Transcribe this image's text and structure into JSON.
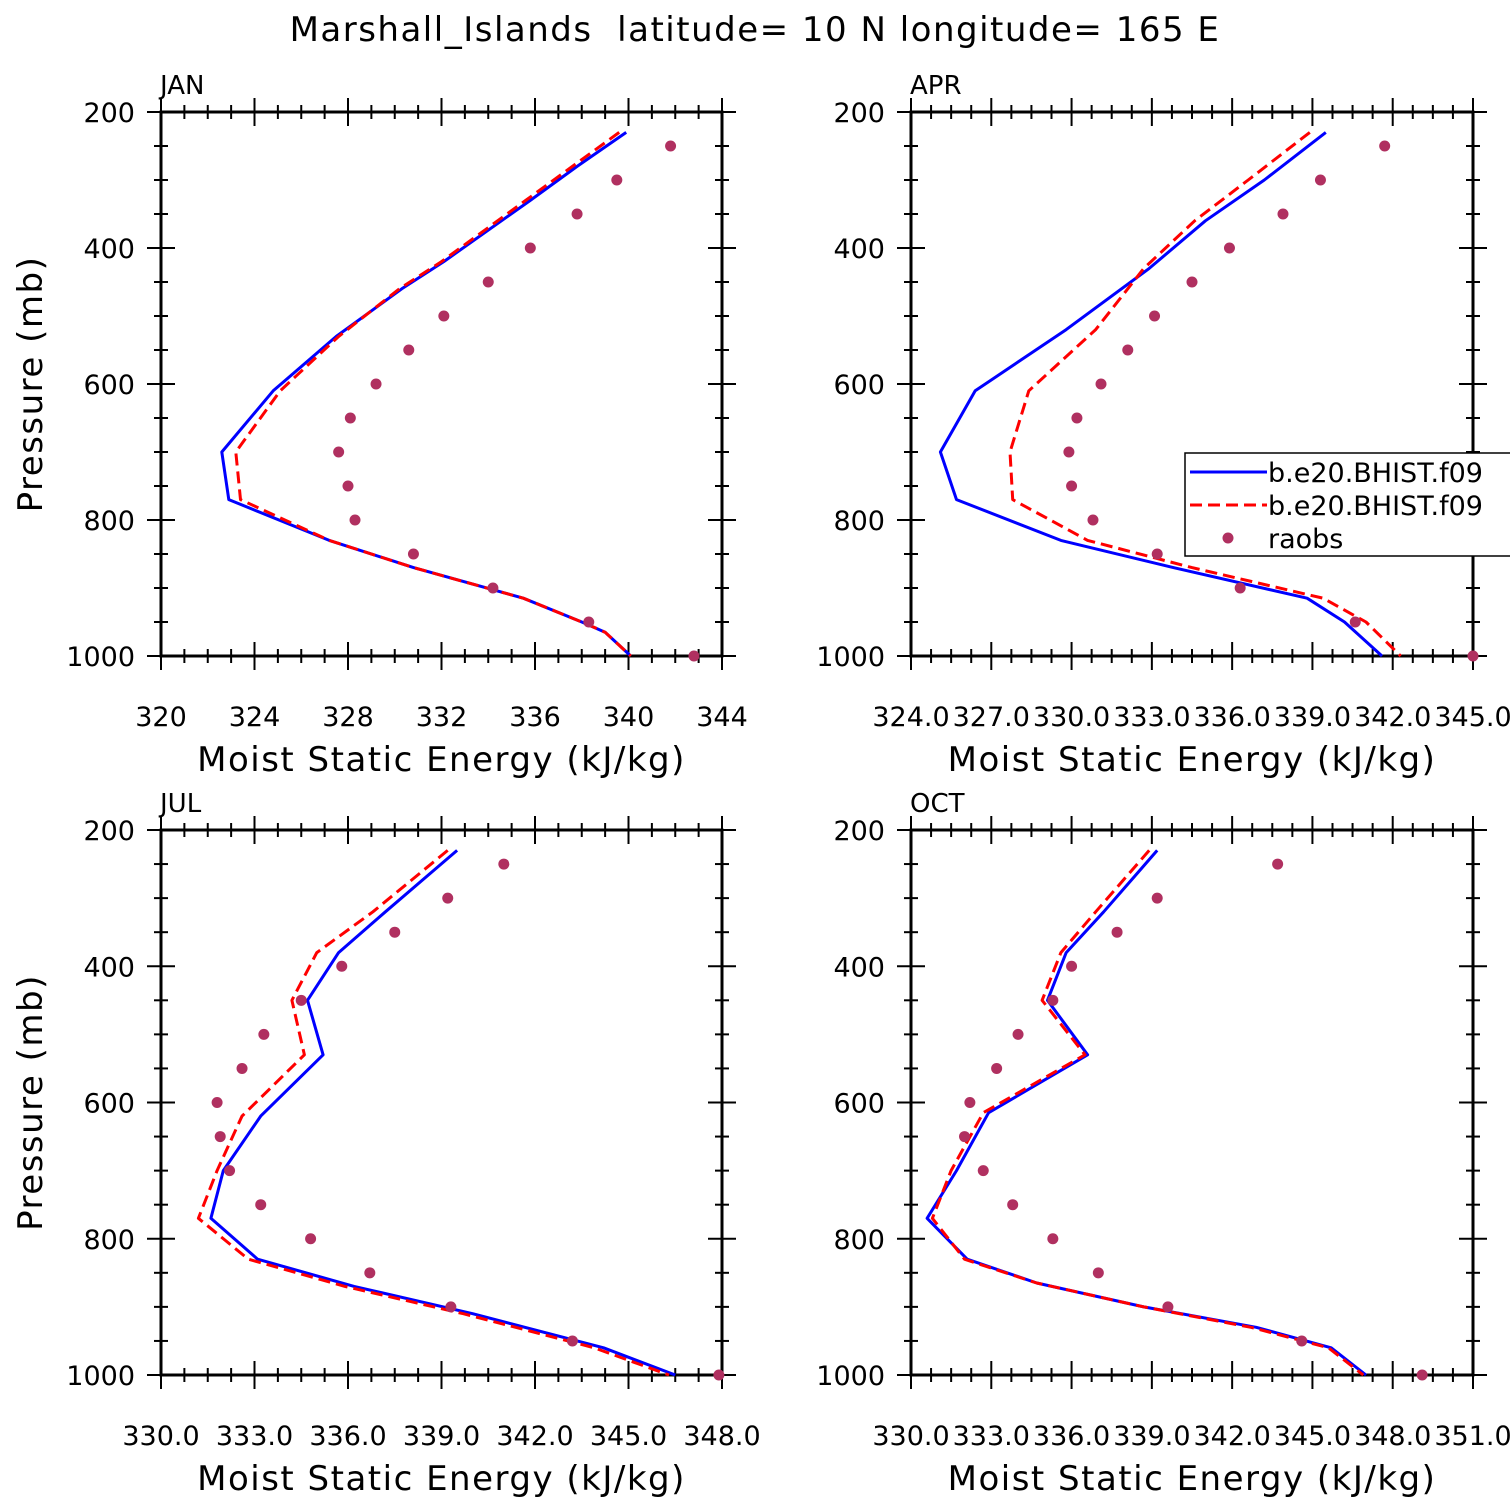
{
  "title": "Marshall_Islands  latitude= 10 N longitude= 165 E",
  "colors": {
    "model1": "#0000ff",
    "model2": "#ff0000",
    "raobs": "#b03060"
  },
  "legend": {
    "panel": 1,
    "placement": "right-middle",
    "entries": [
      "b.e20.BHIST.f09",
      "b.e20.BHIST.f09",
      "raobs"
    ]
  },
  "chart_data": [
    {
      "type": "line",
      "panel_label": "JAN",
      "xlabel": "Moist Static Energy (kJ/kg)",
      "ylabel": "Pressure (mb)",
      "xlim": [
        320,
        344
      ],
      "ylim": [
        1000,
        200
      ],
      "xticks": [
        "320",
        "324",
        "328",
        "332",
        "336",
        "340",
        "344"
      ],
      "yticks": [
        "200",
        "400",
        "600",
        "800",
        "1000"
      ],
      "series": [
        {
          "name": "b.e20.BHIST.f09",
          "style": "solid",
          "x": [
            339.9,
            337.8,
            335.8,
            332.1,
            330.3,
            327.5,
            324.8,
            322.6,
            322.9,
            327.2,
            330.8,
            335.5,
            338.0,
            339.0,
            340.1
          ],
          "y": [
            230,
            280,
            330,
            420,
            460,
            530,
            610,
            700,
            770,
            830,
            870,
            915,
            950,
            965,
            1000
          ]
        },
        {
          "name": "b.e20.BHIST.f09",
          "style": "dashed",
          "x": [
            339.6,
            337.6,
            335.6,
            332.0,
            330.2,
            327.6,
            325.1,
            323.2,
            323.4,
            327.2,
            330.8,
            335.5,
            338.0,
            339.0,
            340.1
          ],
          "y": [
            230,
            280,
            330,
            420,
            460,
            530,
            610,
            700,
            770,
            830,
            870,
            915,
            950,
            965,
            1000
          ]
        },
        {
          "name": "raobs",
          "style": "dots",
          "x": [
            341.8,
            339.5,
            337.8,
            335.8,
            334.0,
            332.1,
            330.6,
            329.2,
            328.1,
            327.6,
            328.0,
            328.3,
            330.8,
            334.2,
            338.3,
            342.8
          ],
          "y": [
            250,
            300,
            350,
            400,
            450,
            500,
            550,
            600,
            650,
            700,
            750,
            800,
            850,
            900,
            950,
            1000
          ]
        }
      ]
    },
    {
      "type": "line",
      "panel_label": "APR",
      "xlabel": "Moist Static Energy (kJ/kg)",
      "ylabel": "",
      "xlim": [
        324.0,
        345.0
      ],
      "ylim": [
        1000,
        200
      ],
      "xticks": [
        "324.0",
        "327.0",
        "330.0",
        "333.0",
        "336.0",
        "339.0",
        "342.0",
        "345.0"
      ],
      "yticks": [
        "200",
        "400",
        "600",
        "800",
        "1000"
      ],
      "series": [
        {
          "name": "b.e20.BHIST.f09",
          "style": "solid",
          "x": [
            339.5,
            337.2,
            335.0,
            332.9,
            329.8,
            326.4,
            325.1,
            325.7,
            329.6,
            333.8,
            338.8,
            340.2,
            341.6
          ],
          "y": [
            230,
            300,
            360,
            430,
            520,
            610,
            700,
            770,
            830,
            870,
            915,
            950,
            1000
          ]
        },
        {
          "name": "b.e20.BHIST.f09",
          "style": "dashed",
          "x": [
            338.9,
            336.6,
            334.6,
            332.7,
            330.9,
            328.4,
            327.7,
            327.8,
            330.6,
            334.5,
            339.4,
            341.0,
            342.3
          ],
          "y": [
            230,
            300,
            360,
            430,
            520,
            610,
            700,
            770,
            830,
            870,
            915,
            950,
            1000
          ]
        },
        {
          "name": "raobs",
          "style": "dots",
          "x": [
            341.7,
            339.3,
            337.9,
            335.9,
            334.5,
            333.1,
            332.1,
            331.1,
            330.2,
            329.9,
            330.0,
            330.8,
            333.2,
            336.3,
            340.6,
            345.0
          ],
          "y": [
            250,
            300,
            350,
            400,
            450,
            500,
            550,
            600,
            650,
            700,
            750,
            800,
            850,
            900,
            950,
            1000
          ]
        }
      ]
    },
    {
      "type": "line",
      "panel_label": "JUL",
      "xlabel": "Moist Static Energy (kJ/kg)",
      "ylabel": "Pressure (mb)",
      "xlim": [
        330.0,
        348.0
      ],
      "ylim": [
        1000,
        200
      ],
      "xticks": [
        "330.0",
        "333.0",
        "336.0",
        "339.0",
        "342.0",
        "345.0",
        "348.0"
      ],
      "yticks": [
        "200",
        "400",
        "600",
        "800",
        "1000"
      ],
      "series": [
        {
          "name": "b.e20.BHIST.f09",
          "style": "solid",
          "x": [
            339.5,
            337.2,
            335.7,
            334.7,
            335.2,
            333.2,
            332.0,
            331.6,
            333.1,
            336.2,
            340.0,
            344.2,
            346.5
          ],
          "y": [
            230,
            320,
            380,
            450,
            530,
            620,
            700,
            770,
            830,
            870,
            910,
            960,
            1000
          ]
        },
        {
          "name": "b.e20.BHIST.f09",
          "style": "dashed",
          "x": [
            339.2,
            336.8,
            335.0,
            334.2,
            334.6,
            332.6,
            331.8,
            331.2,
            332.8,
            335.9,
            339.7,
            343.9,
            346.3
          ],
          "y": [
            230,
            320,
            380,
            450,
            530,
            620,
            700,
            770,
            830,
            870,
            910,
            960,
            1000
          ]
        },
        {
          "name": "raobs",
          "style": "dots",
          "x": [
            341.0,
            339.2,
            337.5,
            335.8,
            334.5,
            333.3,
            332.6,
            331.8,
            331.9,
            332.2,
            333.2,
            334.8,
            336.7,
            339.3,
            343.2,
            347.9
          ],
          "y": [
            250,
            300,
            350,
            400,
            450,
            500,
            550,
            600,
            650,
            700,
            750,
            800,
            850,
            900,
            950,
            1000
          ]
        }
      ]
    },
    {
      "type": "line",
      "panel_label": "OCT",
      "xlabel": "Moist Static Energy (kJ/kg)",
      "ylabel": "",
      "xlim": [
        330.0,
        351.0
      ],
      "ylim": [
        1000,
        200
      ],
      "xticks": [
        "330.0",
        "333.0",
        "336.0",
        "339.0",
        "342.0",
        "345.0",
        "348.0",
        "351.0"
      ],
      "yticks": [
        "200",
        "400",
        "600",
        "800",
        "1000"
      ],
      "series": [
        {
          "name": "b.e20.BHIST.f09",
          "style": "solid",
          "x": [
            339.2,
            337.2,
            335.8,
            335.1,
            336.6,
            332.9,
            331.7,
            330.6,
            332.1,
            334.7,
            338.7,
            342.9,
            345.7,
            347.0
          ],
          "y": [
            230,
            320,
            380,
            450,
            530,
            615,
            700,
            770,
            830,
            865,
            900,
            930,
            960,
            1000
          ]
        },
        {
          "name": "b.e20.BHIST.f09",
          "style": "dashed",
          "x": [
            338.9,
            336.9,
            335.6,
            334.9,
            336.5,
            332.7,
            331.5,
            330.8,
            332.0,
            334.7,
            338.7,
            342.7,
            345.6,
            346.9
          ],
          "y": [
            230,
            320,
            380,
            450,
            530,
            615,
            700,
            770,
            830,
            865,
            900,
            930,
            960,
            1000
          ]
        },
        {
          "name": "raobs",
          "style": "dots",
          "x": [
            343.7,
            339.2,
            337.7,
            336.0,
            335.3,
            334.0,
            333.2,
            332.2,
            332.0,
            332.7,
            333.8,
            335.3,
            337.0,
            339.6,
            344.6,
            349.1
          ],
          "y": [
            250,
            300,
            350,
            400,
            450,
            500,
            550,
            600,
            650,
            700,
            750,
            800,
            850,
            900,
            950,
            1000
          ]
        }
      ]
    }
  ]
}
